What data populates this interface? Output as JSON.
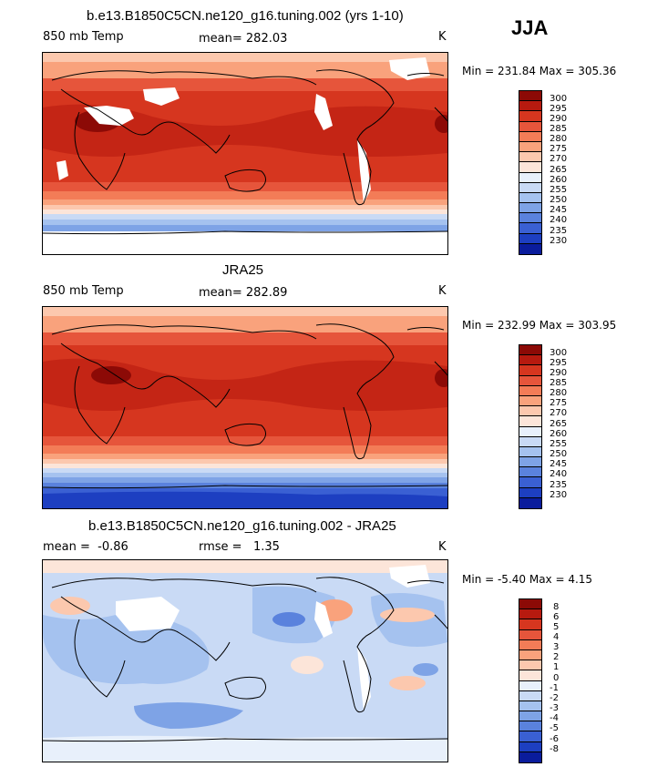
{
  "season": "JJA",
  "colors": {
    "warm": [
      "#fce5d9",
      "#fcc8ae",
      "#f9a27c",
      "#f37c57",
      "#e6553b",
      "#d6361f",
      "#b71a0f",
      "#8c0a06"
    ],
    "cool": [
      "#e8f0fb",
      "#c9daf5",
      "#a5c2ef",
      "#7ea3e6",
      "#5a82dd",
      "#3a60d3",
      "#1d3fc1",
      "#0a1c9c"
    ],
    "land_line": "#000000",
    "missing": "#ffffff"
  },
  "panels": [
    {
      "title": "b.e13.B1850C5CN.ne120_g16.tuning.002 (yrs 1-10)",
      "left_label": "850 mb Temp",
      "mean_label": "mean=",
      "mean_value": "282.03",
      "units": "K",
      "minmax": "Min = 231.84 Max = 305.36",
      "colorbar_labels": [
        "300",
        "295",
        "290",
        "285",
        "280",
        "275",
        "270",
        "265",
        "260",
        "255",
        "250",
        "245",
        "240",
        "235",
        "230"
      ],
      "colorbar_colors": [
        "#8c0a06",
        "#b71a0f",
        "#d6361f",
        "#e6553b",
        "#f37c57",
        "#f9a27c",
        "#fcc8ae",
        "#fce5d9",
        "#e8f0fb",
        "#c9daf5",
        "#a5c2ef",
        "#7ea3e6",
        "#5a82dd",
        "#3a60d3",
        "#1d3fc1",
        "#0a1c9c"
      ]
    },
    {
      "title": "JRA25",
      "left_label": "850 mb Temp",
      "mean_label": "mean=",
      "mean_value": "282.89",
      "units": "K",
      "minmax": "Min = 232.99 Max = 303.95",
      "colorbar_labels": [
        "300",
        "295",
        "290",
        "285",
        "280",
        "275",
        "270",
        "265",
        "260",
        "255",
        "250",
        "245",
        "240",
        "235",
        "230"
      ],
      "colorbar_colors": [
        "#8c0a06",
        "#b71a0f",
        "#d6361f",
        "#e6553b",
        "#f37c57",
        "#f9a27c",
        "#fcc8ae",
        "#fce5d9",
        "#e8f0fb",
        "#c9daf5",
        "#a5c2ef",
        "#7ea3e6",
        "#5a82dd",
        "#3a60d3",
        "#1d3fc1",
        "#0a1c9c"
      ]
    },
    {
      "title": "b.e13.B1850C5CN.ne120_g16.tuning.002 - JRA25",
      "left_label": "mean =",
      "left_value": "-0.86",
      "mean_label": "rmse =",
      "mean_value": "1.35",
      "units": "K",
      "minmax": "Min =   -5.40 Max =    4.15",
      "colorbar_labels": [
        "8",
        "6",
        "5",
        "4",
        "3",
        "2",
        "1",
        "0",
        "-1",
        "-2",
        "-3",
        "-4",
        "-5",
        "-6",
        "-8"
      ],
      "colorbar_colors": [
        "#8c0a06",
        "#b71a0f",
        "#d6361f",
        "#e6553b",
        "#f37c57",
        "#f9a27c",
        "#fcc8ae",
        "#fce5d9",
        "#e8f0fb",
        "#c9daf5",
        "#a5c2ef",
        "#7ea3e6",
        "#5a82dd",
        "#3a60d3",
        "#1d3fc1",
        "#0a1c9c"
      ]
    }
  ]
}
